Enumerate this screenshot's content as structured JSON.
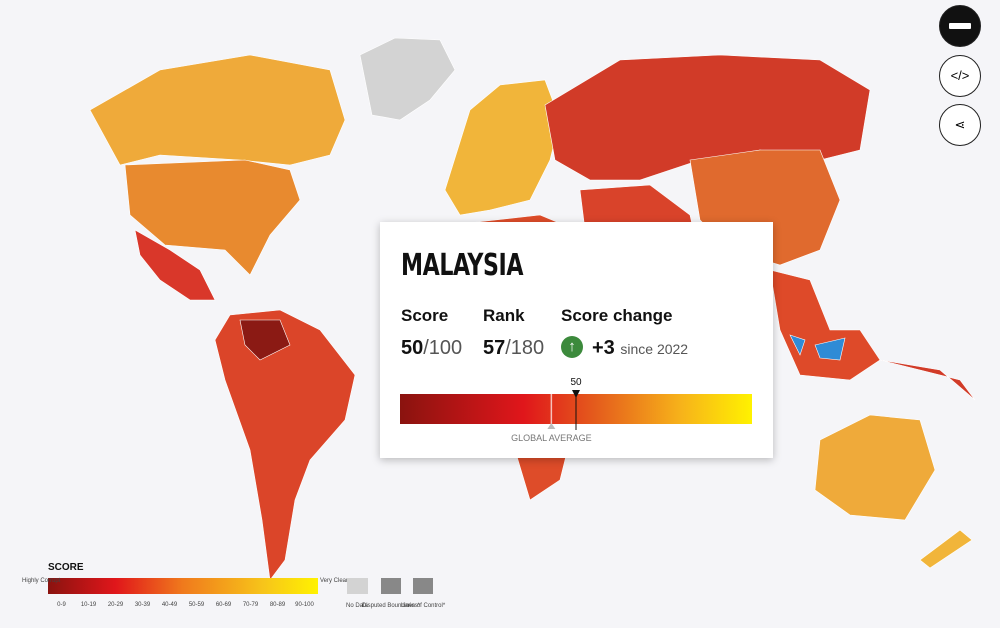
{
  "popup": {
    "country": "MALAYSIA",
    "score": {
      "label": "Score",
      "value": 50,
      "max": "/100"
    },
    "rank": {
      "label": "Rank",
      "value": 57,
      "max": "/180"
    },
    "score_change": {
      "label": "Score change",
      "value": "+3",
      "since": "since 2022"
    },
    "scale": {
      "min": 0,
      "max": 100,
      "global_average": 43,
      "global_average_label": "GLOBAL AVERAGE"
    }
  },
  "legend": {
    "title": "SCORE",
    "low_label": "Highly Corrupt",
    "high_label": "Very Clean",
    "bins": [
      "0-9",
      "10-19",
      "20-29",
      "30-39",
      "40-49",
      "50-59",
      "60-69",
      "70-79",
      "80-89",
      "90-100"
    ],
    "no_data": "No Data",
    "disputed": "Disputed Boundaries*",
    "lines_of_control": "Lines of Control*"
  }
}
